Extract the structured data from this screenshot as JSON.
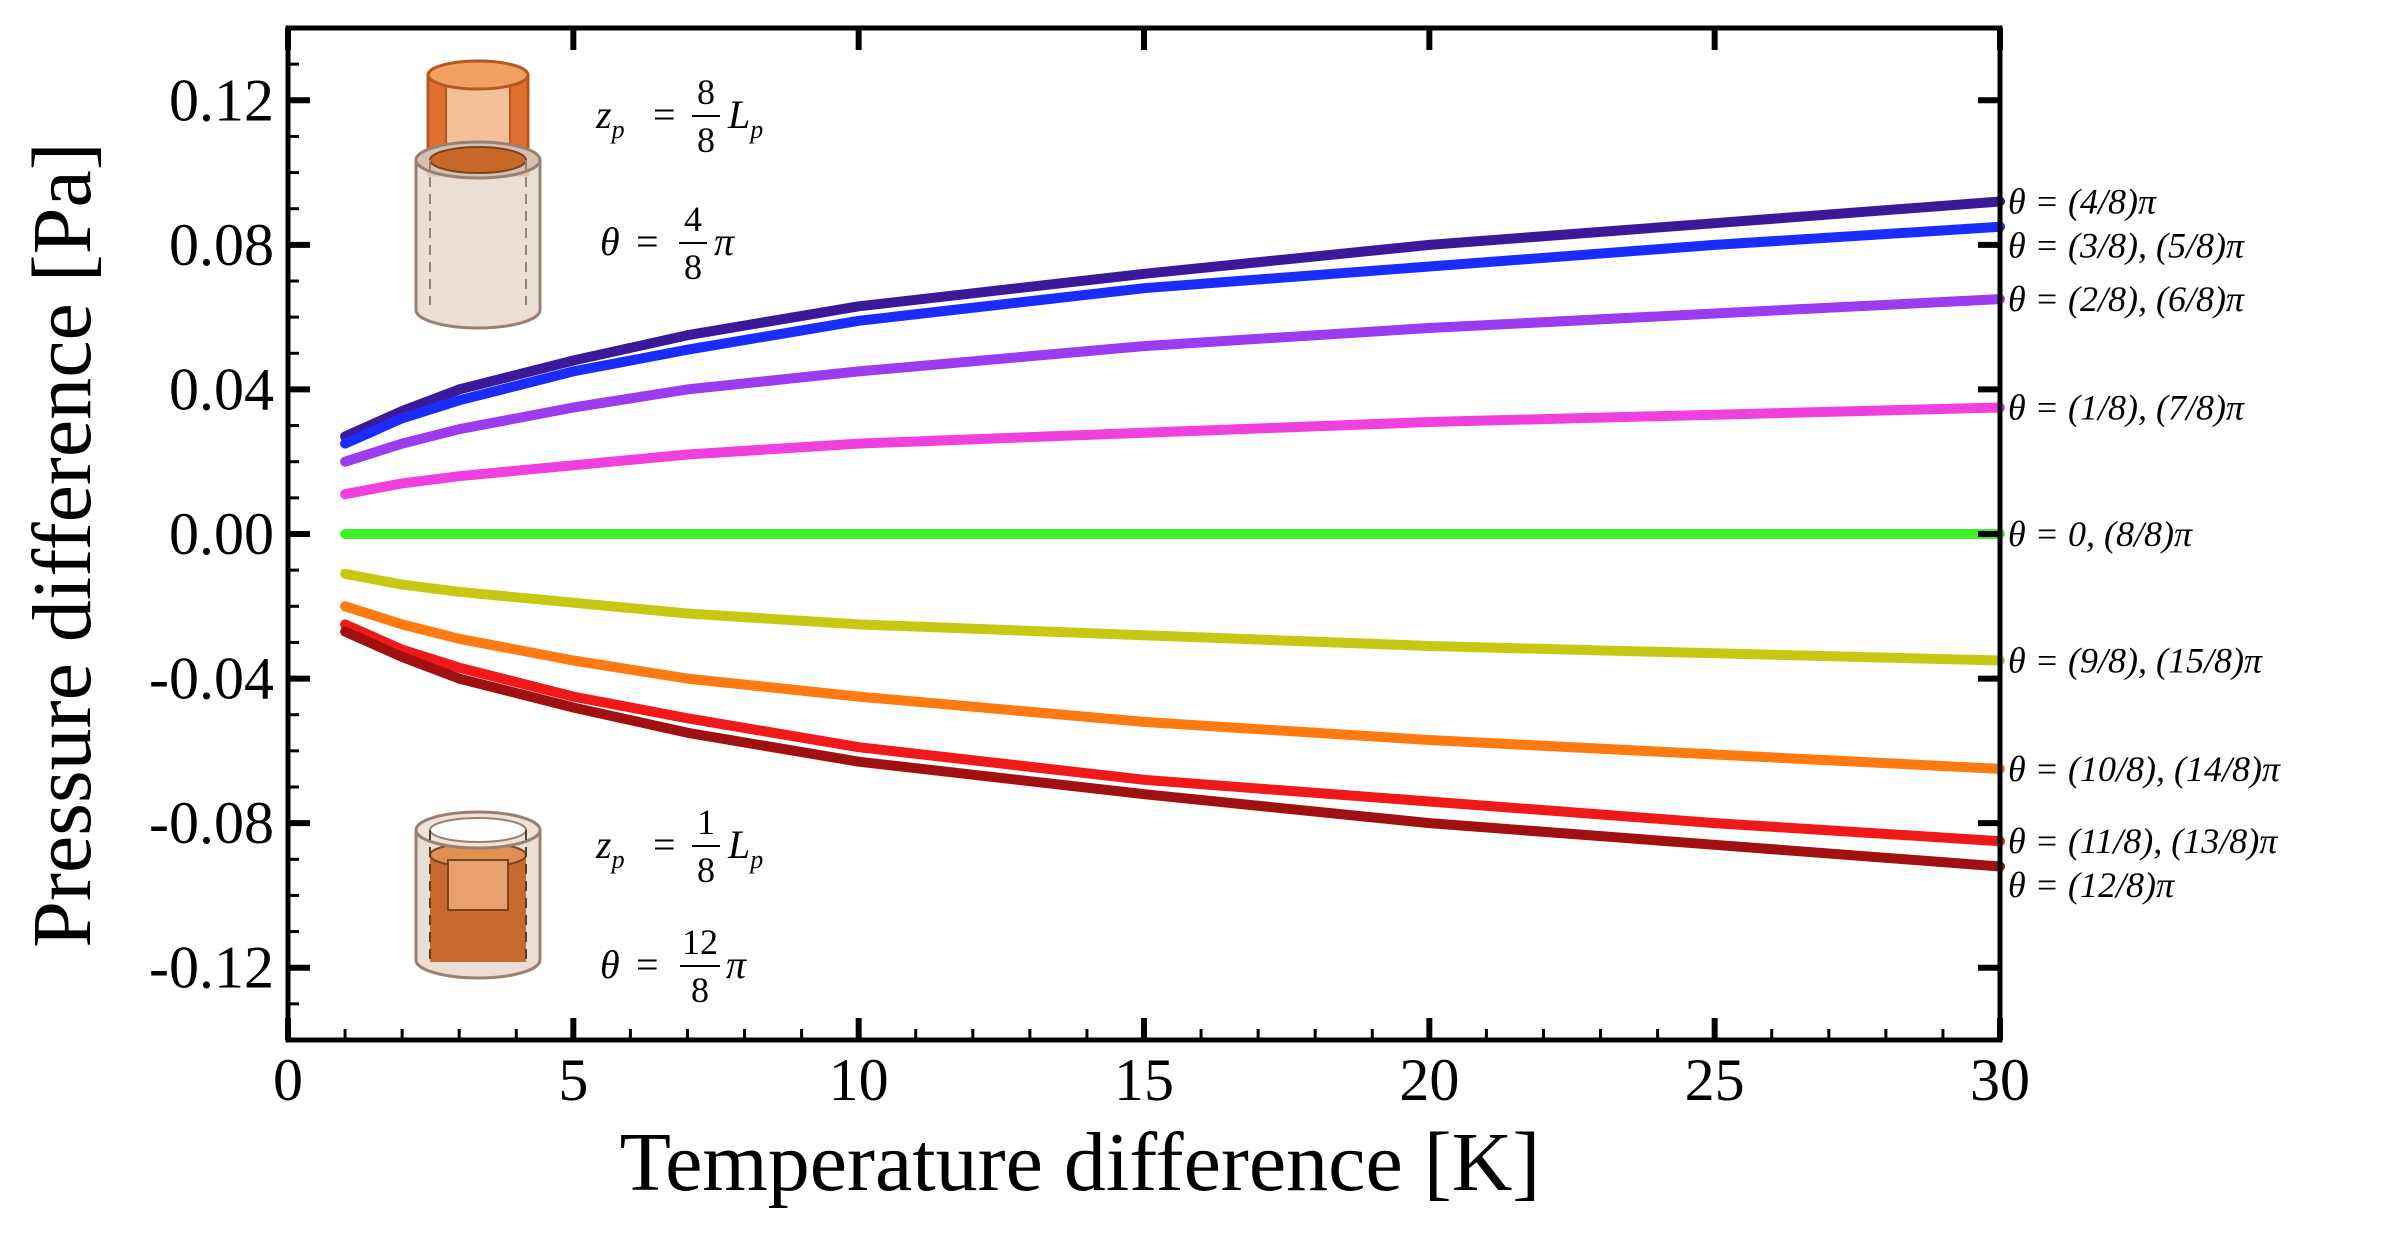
{
  "chart_data": {
    "type": "line",
    "title": "",
    "xlabel": "Temperature difference [K]",
    "ylabel": "Pressure difference [Pa]",
    "xlim": [
      0,
      30
    ],
    "ylim": [
      -0.14,
      0.14
    ],
    "x_ticks": [
      0,
      5,
      10,
      15,
      20,
      25,
      30
    ],
    "x_tick_labels": [
      "0",
      "5",
      "10",
      "15",
      "20",
      "25",
      "30"
    ],
    "y_ticks": [
      0.12,
      0.08,
      0.04,
      0.0,
      -0.04,
      -0.08,
      -0.12
    ],
    "y_tick_labels": [
      "0.12",
      "0.08",
      "0.04",
      "0.00",
      "-0.04",
      "-0.08",
      "-0.12"
    ],
    "grid": false,
    "x": [
      1,
      2,
      3,
      5,
      7,
      10,
      15,
      20,
      25,
      30
    ],
    "series": [
      {
        "name": "θ = (4/8)π",
        "color": "#3a1a9a",
        "values": [
          0.027,
          0.034,
          0.04,
          0.048,
          0.055,
          0.063,
          0.072,
          0.08,
          0.086,
          0.092
        ]
      },
      {
        "name": "θ = (3/8), (5/8)π",
        "color": "#1a2cff",
        "values": [
          0.025,
          0.032,
          0.037,
          0.045,
          0.051,
          0.059,
          0.068,
          0.074,
          0.08,
          0.085
        ]
      },
      {
        "name": "θ = (2/8), (6/8)π",
        "color": "#9b3cf0",
        "values": [
          0.02,
          0.025,
          0.029,
          0.035,
          0.04,
          0.045,
          0.052,
          0.057,
          0.061,
          0.065
        ]
      },
      {
        "name": "θ = (1/8), (7/8)π",
        "color": "#f040e0",
        "values": [
          0.011,
          0.014,
          0.016,
          0.019,
          0.022,
          0.025,
          0.028,
          0.031,
          0.033,
          0.035
        ]
      },
      {
        "name": "θ = 0, (8/8)π",
        "color": "#3cf02a",
        "values": [
          0,
          0,
          0,
          0,
          0,
          0,
          0,
          0,
          0,
          0
        ]
      },
      {
        "name": "θ = (9/8), (15/8)π",
        "color": "#c8c814",
        "values": [
          -0.011,
          -0.014,
          -0.016,
          -0.019,
          -0.022,
          -0.025,
          -0.028,
          -0.031,
          -0.033,
          -0.035
        ]
      },
      {
        "name": "θ = (10/8), (14/8)π",
        "color": "#ff7a10",
        "values": [
          -0.02,
          -0.025,
          -0.029,
          -0.035,
          -0.04,
          -0.045,
          -0.052,
          -0.057,
          -0.061,
          -0.065
        ]
      },
      {
        "name": "θ = (11/8), (13/8)π",
        "color": "#f01818",
        "values": [
          -0.025,
          -0.032,
          -0.037,
          -0.045,
          -0.051,
          -0.059,
          -0.068,
          -0.074,
          -0.08,
          -0.085
        ]
      },
      {
        "name": "θ = (12/8)π",
        "color": "#a01010",
        "values": [
          -0.027,
          -0.034,
          -0.04,
          -0.048,
          -0.055,
          -0.063,
          -0.072,
          -0.08,
          -0.086,
          -0.092
        ]
      }
    ],
    "annotations": [
      {
        "position": "top-left",
        "line1_lhs": "z",
        "line1_sub": "p",
        "line1_num": "8",
        "line1_den": "8",
        "line1_rhs": "L",
        "line1_rhs_sub": "p",
        "line2_lhs": "θ",
        "line2_num": "4",
        "line2_den": "8",
        "line2_rhs": "π"
      },
      {
        "position": "bottom-left",
        "line1_lhs": "z",
        "line1_sub": "p",
        "line1_num": "1",
        "line1_den": "8",
        "line1_rhs": "L",
        "line1_rhs_sub": "p",
        "line2_lhs": "θ",
        "line2_num": "12",
        "line2_den": "8",
        "line2_rhs": "π"
      }
    ]
  }
}
